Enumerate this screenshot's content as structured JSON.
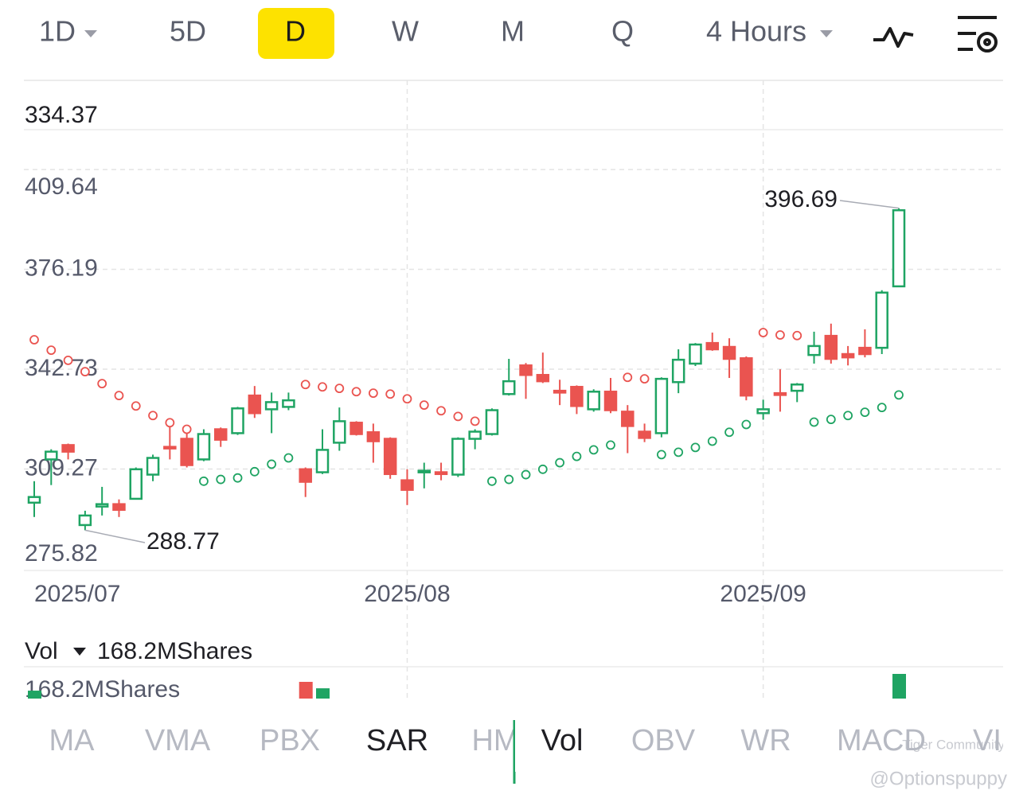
{
  "tabs": {
    "items": [
      "1D",
      "5D",
      "D",
      "W",
      "M",
      "Q",
      "4 Hours"
    ],
    "active": 2
  },
  "chart_data": {
    "type": "candlestick",
    "top_label": "334.37",
    "categories": [
      "2025/07",
      null,
      null,
      null,
      null,
      null,
      null,
      null,
      null,
      null,
      null,
      null,
      null,
      null,
      null,
      null,
      null,
      null,
      null,
      null,
      null,
      null,
      "2025/08",
      null,
      null,
      null,
      null,
      null,
      null,
      null,
      null,
      null,
      null,
      null,
      null,
      null,
      null,
      null,
      null,
      null,
      null,
      null,
      null,
      "2025/09",
      null,
      null,
      null,
      null,
      null,
      null,
      null,
      null
    ],
    "open": [
      298.0,
      312.5,
      317.3,
      290.5,
      296.7,
      297.5,
      299.3,
      307.4,
      316.7,
      319.4,
      312.5,
      322.6,
      321.3,
      333.9,
      329.3,
      330.1,
      309.2,
      308.2,
      318.1,
      324.8,
      321.6,
      319.4,
      305.5,
      308.2,
      308.2,
      307.4,
      319.4,
      321.0,
      334.4,
      344.0,
      340.8,
      335.5,
      336.8,
      329.3,
      335.2,
      328.5,
      321.8,
      321.3,
      338.4,
      344.6,
      351.5,
      350.2,
      346.4,
      328.0,
      334.7,
      335.5,
      347.5,
      353.9,
      347.8,
      349.9,
      349.9,
      370.5
    ],
    "high": [
      305.2,
      315.9,
      317.8,
      295.3,
      303.3,
      299.1,
      309.8,
      314.1,
      325.3,
      321.3,
      322.6,
      323.2,
      330.1,
      337.1,
      334.9,
      334.9,
      309.8,
      322.6,
      329.9,
      325.3,
      324.5,
      319.9,
      309.2,
      311.4,
      311.4,
      319.9,
      322.6,
      329.6,
      346.2,
      344.8,
      348.3,
      339.2,
      337.3,
      336.0,
      339.8,
      330.7,
      324.5,
      340.0,
      349.4,
      351.5,
      355.0,
      353.1,
      347.0,
      332.5,
      342.7,
      338.1,
      355.3,
      358.0,
      350.5,
      356.1,
      369.2,
      396.69
    ],
    "low": [
      293.2,
      303.9,
      312.5,
      288.77,
      293.7,
      293.2,
      299.1,
      305.2,
      312.5,
      309.8,
      311.9,
      316.7,
      320.7,
      326.4,
      321.3,
      329.0,
      299.9,
      307.6,
      315.4,
      320.5,
      311.4,
      306.0,
      297.2,
      302.8,
      305.5,
      306.6,
      315.9,
      320.5,
      333.9,
      332.8,
      338.1,
      330.7,
      327.7,
      328.5,
      328.0,
      314.6,
      318.3,
      319.9,
      334.7,
      343.8,
      348.9,
      339.8,
      332.3,
      325.8,
      328.5,
      331.7,
      344.6,
      344.6,
      344.0,
      346.7,
      347.8,
      370.3
    ],
    "close": [
      299.9,
      315.1,
      315.1,
      293.7,
      297.5,
      295.6,
      309.2,
      313.0,
      316.2,
      310.6,
      321.0,
      319.1,
      329.6,
      328.0,
      331.7,
      332.3,
      305.0,
      315.7,
      325.3,
      321.0,
      318.6,
      307.6,
      302.3,
      308.7,
      307.6,
      319.4,
      321.8,
      329.0,
      338.7,
      340.8,
      338.7,
      334.9,
      330.4,
      335.2,
      329.0,
      323.7,
      319.7,
      339.5,
      345.9,
      351.0,
      349.4,
      346.2,
      333.9,
      329.3,
      334.1,
      337.6,
      350.5,
      346.2,
      346.7,
      347.8,
      368.4,
      396.0
    ],
    "sar": [
      352.6,
      349.1,
      345.7,
      341.9,
      337.9,
      333.9,
      330.4,
      327.2,
      324.8,
      322.6,
      305.2,
      305.8,
      306.3,
      308.4,
      310.9,
      313.0,
      337.6,
      336.8,
      336.3,
      335.2,
      334.7,
      334.4,
      332.8,
      330.7,
      328.8,
      326.9,
      325.3,
      305.2,
      305.8,
      307.4,
      309.2,
      311.4,
      313.5,
      315.7,
      317.3,
      340.0,
      339.5,
      314.1,
      314.9,
      316.5,
      318.6,
      321.6,
      324.2,
      355.0,
      354.2,
      354.0,
      325.0,
      325.9,
      327.2,
      328.3,
      329.9,
      334.1
    ],
    "volume": [
      54,
      null,
      null,
      null,
      null,
      null,
      null,
      null,
      null,
      null,
      null,
      null,
      null,
      null,
      null,
      null,
      114,
      70,
      null,
      null,
      null,
      null,
      null,
      null,
      null,
      null,
      null,
      null,
      null,
      null,
      null,
      null,
      null,
      null,
      null,
      null,
      null,
      null,
      null,
      null,
      null,
      null,
      null,
      null,
      null,
      null,
      null,
      null,
      null,
      null,
      null,
      168.2
    ],
    "up_color": "#1fa463",
    "down_color": "#ea5450",
    "ylim": [
      275.28,
      423.0
    ],
    "yticks": [
      275.82,
      309.27,
      342.73,
      376.19,
      409.64
    ],
    "volume_ylim": [
      0,
      168.2
    ],
    "volume_title": "Vol",
    "volume_header": "168.2MShares",
    "volume_axis_label": "168.2MShares",
    "grid": true
  },
  "indicators": {
    "items": [
      "MA",
      "VMA",
      "PBX",
      "SAR",
      "HM",
      "Vol",
      "OBV",
      "WR",
      "MACD",
      "VI"
    ],
    "active": [
      3,
      5
    ]
  },
  "watermark": {
    "brand": "Tiger Community",
    "user": "@Optionspuppy"
  }
}
